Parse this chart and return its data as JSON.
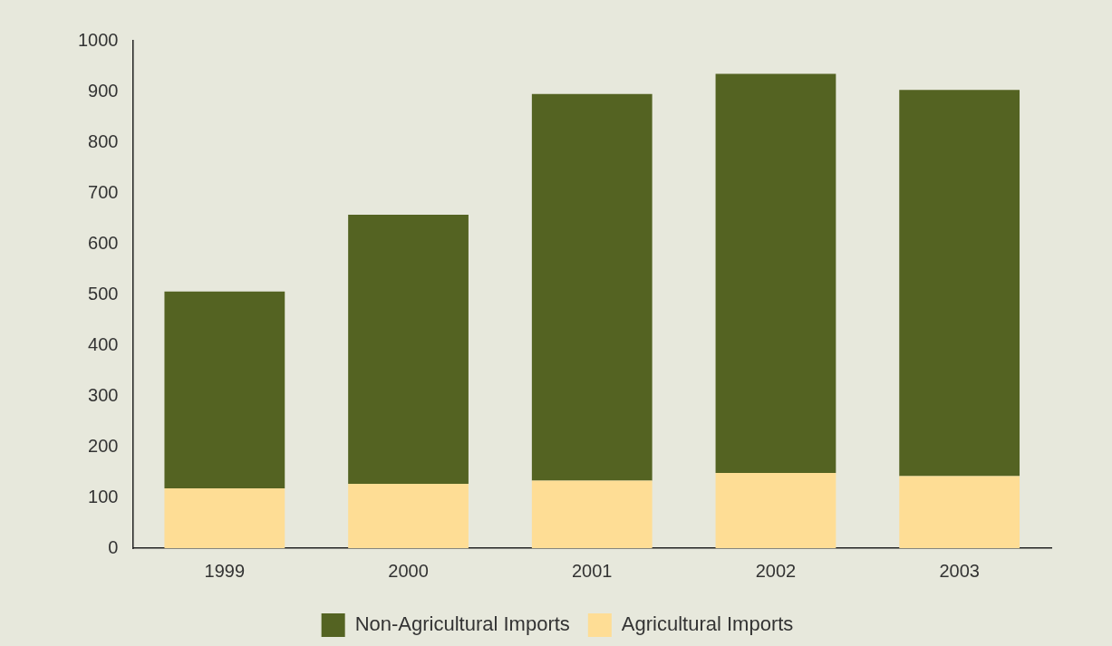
{
  "chart_data": {
    "type": "bar",
    "categories": [
      "1999",
      "2000",
      "2001",
      "2002",
      "2003"
    ],
    "series": [
      {
        "name": "Agricultural Imports",
        "color": "#fedd95",
        "values": [
          118,
          127,
          133,
          148,
          142
        ]
      },
      {
        "name": "Non-Agricultural Imports",
        "color": "#546322",
        "values": [
          388,
          530,
          762,
          787,
          761
        ]
      }
    ],
    "stacked": true,
    "ylim": [
      0,
      1000
    ],
    "yticks": [
      0,
      100,
      200,
      300,
      400,
      500,
      600,
      700,
      800,
      900,
      1000
    ],
    "legend": "bottom"
  }
}
